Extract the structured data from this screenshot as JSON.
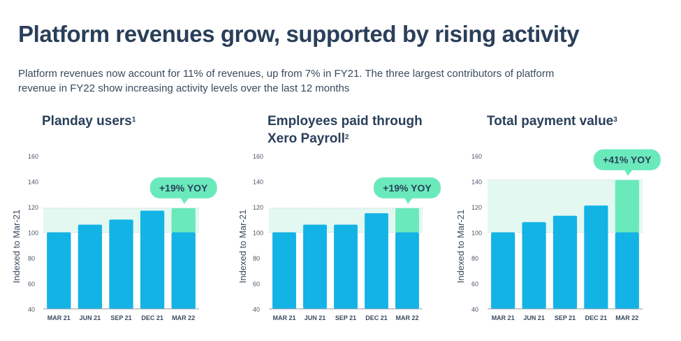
{
  "header": {
    "title": "Platform revenues grow, supported by rising activity",
    "subtitle": "Platform revenues now account for 11% of revenues, up from 7% in FY21. The three largest contributors of platform revenue in FY22 show increasing activity levels over the last 12 months"
  },
  "colors": {
    "bar": "#13b3e6",
    "growth": "#6aeabb",
    "band": "#e3f8f1",
    "text": "#2a3f5a"
  },
  "chart_data": [
    {
      "type": "bar",
      "title": "Planday users",
      "footnote": "1",
      "ylabel": "Indexed to Mar-21",
      "categories": [
        "MAR 21",
        "JUN 21",
        "SEP 21",
        "DEC 21",
        "MAR 22"
      ],
      "values": [
        100,
        106,
        110,
        117,
        119
      ],
      "ylim": [
        40,
        160
      ],
      "yticks": [
        "40",
        "60",
        "80",
        "100",
        "120",
        "140",
        "160"
      ],
      "callout": "+19% YOY"
    },
    {
      "type": "bar",
      "title": "Employees paid through",
      "title_line2": "Xero Payroll",
      "footnote": "2",
      "ylabel": "Indexed to Mar-21",
      "categories": [
        "MAR 21",
        "JUN 21",
        "SEP 21",
        "DEC 21",
        "MAR 22"
      ],
      "values": [
        100,
        106,
        106,
        115,
        119
      ],
      "ylim": [
        40,
        160
      ],
      "yticks": [
        "40",
        "60",
        "80",
        "100",
        "120",
        "140",
        "160"
      ],
      "callout": "+19% YOY"
    },
    {
      "type": "bar",
      "title": "Total payment value",
      "footnote": "3",
      "ylabel": "Indexed to Mar-21",
      "categories": [
        "MAR 21",
        "JUN 21",
        "SEP 21",
        "DEC 21",
        "MAR 22"
      ],
      "values": [
        100,
        108,
        113,
        121,
        141
      ],
      "ylim": [
        40,
        160
      ],
      "yticks": [
        "40",
        "60",
        "80",
        "100",
        "120",
        "140",
        "160"
      ],
      "callout": "+41% YOY"
    }
  ]
}
